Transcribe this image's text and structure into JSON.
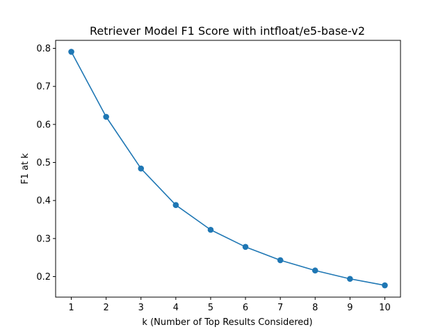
{
  "chart_data": {
    "type": "line",
    "title": "Retriever Model F1 Score with intfloat/e5-base-v2",
    "xlabel": "k (Number of Top Results Considered)",
    "ylabel": "F1 at k",
    "x": [
      1,
      2,
      3,
      4,
      5,
      6,
      7,
      8,
      9,
      10
    ],
    "series": [
      {
        "values": [
          0.791,
          0.62,
          0.484,
          0.388,
          0.323,
          0.278,
          0.243,
          0.216,
          0.194,
          0.177
        ],
        "color": "#1f77b4",
        "marker": "circle"
      }
    ],
    "xlim": [
      0.55,
      10.45
    ],
    "ylim": [
      0.146,
      0.821
    ],
    "xticks": [
      "1",
      "2",
      "3",
      "4",
      "5",
      "6",
      "7",
      "8",
      "9",
      "10"
    ],
    "yticks": [
      "0.2",
      "0.3",
      "0.4",
      "0.5",
      "0.6",
      "0.7",
      "0.8"
    ],
    "grid": false,
    "legend": "none"
  }
}
